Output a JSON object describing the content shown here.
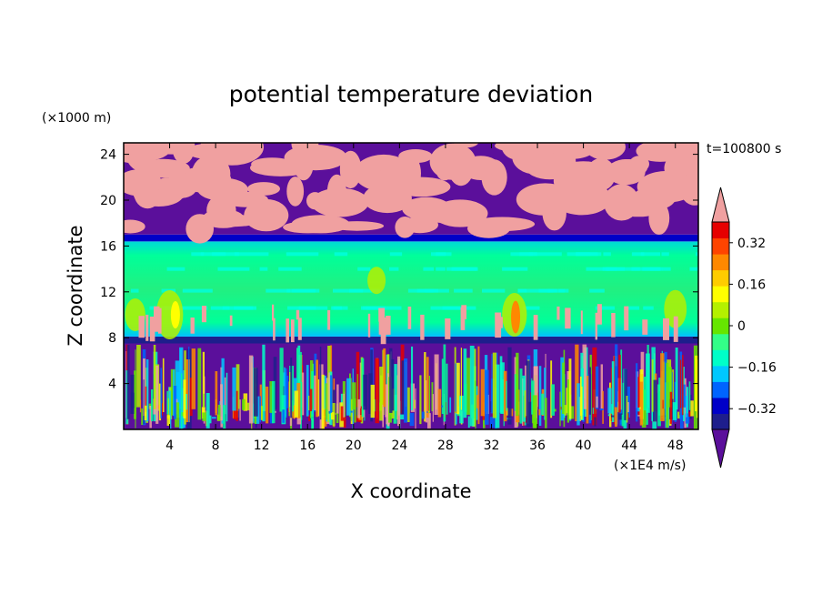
{
  "chart_data": {
    "type": "heatmap",
    "title": "potential temperature deviation",
    "xlabel": "X coordinate",
    "ylabel": "Z coordinate",
    "x_unit": "(×1E4 m/s)",
    "y_unit": "(×1000 m)",
    "time_label": "t=100800 s",
    "xlim": [
      0,
      50
    ],
    "ylim": [
      0,
      25
    ],
    "xticks": [
      4,
      8,
      12,
      16,
      20,
      24,
      28,
      32,
      36,
      40,
      44,
      48
    ],
    "yticks": [
      4,
      8,
      12,
      16,
      20,
      24
    ],
    "grid": false,
    "colorbar": {
      "levels": [
        -0.4,
        -0.36,
        -0.32,
        -0.28,
        -0.24,
        -0.2,
        -0.16,
        -0.12,
        -0.08,
        -0.04,
        0,
        0.04,
        0.08,
        0.12,
        0.16,
        0.2,
        0.24,
        0.28,
        0.32,
        0.36,
        0.4
      ],
      "tick_labels": [
        "0.32",
        "0.16",
        "0",
        "−0.16",
        "−0.32"
      ],
      "tick_values": [
        0.32,
        0.16,
        0,
        -0.16,
        -0.32
      ],
      "colors": [
        "#5b0f9b",
        "#1e1e8c",
        "#0000c8",
        "#0064ff",
        "#00c8ff",
        "#00ffc8",
        "#33ff88",
        "#66e600",
        "#b4f000",
        "#ffff00",
        "#ffcc00",
        "#ff8800",
        "#ff4400",
        "#e60000",
        "#f0a0a0"
      ],
      "extend": "both"
    },
    "layers": [
      {
        "z_range": [
          0,
          7.5
        ],
        "description_value": "mixed",
        "dominant": [
          -0.32,
          0.32
        ]
      },
      {
        "z_range": [
          7.5,
          8.2
        ],
        "dominant": -0.32
      },
      {
        "z_range": [
          8.2,
          16.3
        ],
        "dominant": -0.04
      },
      {
        "z_range": [
          16.3,
          17.5
        ],
        "dominant": -0.2
      },
      {
        "z_range": [
          17.5,
          25
        ],
        "dominant": [
          -0.4,
          0.4
        ]
      }
    ]
  }
}
